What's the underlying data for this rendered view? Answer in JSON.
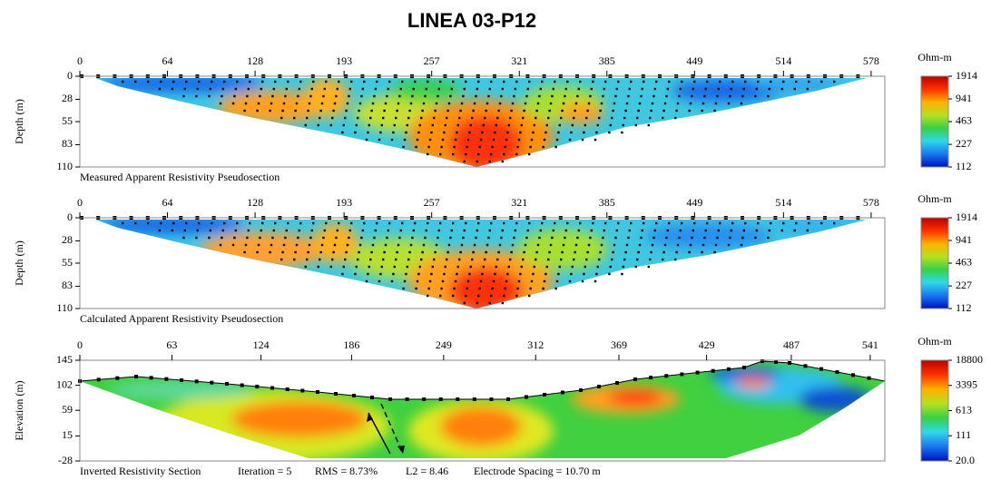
{
  "title": "LINEA 03-P12",
  "chart_data": [
    {
      "type": "contour",
      "caption": "Measured Apparent Resistivity Pseudosection",
      "ylabel": "Depth (m)",
      "xlim": [
        0,
        588
      ],
      "xticks": [
        0,
        64,
        128,
        193,
        257,
        321,
        385,
        449,
        514,
        578
      ],
      "ylim": [
        110,
        0
      ],
      "yticks": [
        0,
        28,
        55,
        83,
        110
      ],
      "colorbar": {
        "label": "Ohm-m",
        "log": true,
        "lim": [
          112,
          1914
        ],
        "ticks": [
          1914,
          941,
          463,
          227,
          112
        ],
        "colors": [
          "#0010c0",
          "#1878f0",
          "#30d8e8",
          "#38d048",
          "#b8e020",
          "#ffb000",
          "#ff3000",
          "#b80000"
        ]
      }
    },
    {
      "type": "contour",
      "caption": "Calculated Apparent Resistivity Pseudosection",
      "ylabel": "Depth (m)",
      "xlim": [
        0,
        588
      ],
      "xticks": [
        0,
        64,
        128,
        193,
        257,
        321,
        385,
        449,
        514,
        578
      ],
      "ylim": [
        110,
        0
      ],
      "yticks": [
        0,
        28,
        55,
        83,
        110
      ],
      "colorbar": {
        "label": "Ohm-m",
        "log": true,
        "lim": [
          112,
          1914
        ],
        "ticks": [
          1914,
          941,
          463,
          227,
          112
        ],
        "colors": [
          "#0010c0",
          "#1878f0",
          "#30d8e8",
          "#38d048",
          "#b8e020",
          "#ffb000",
          "#ff3000",
          "#b80000"
        ]
      }
    },
    {
      "type": "contour",
      "caption": "Inverted Resistivity Section",
      "ylabel": "Elevation (m)",
      "notes": [
        "Iteration = 5",
        "RMS = 8.73%",
        "L2 = 8.46",
        "Electrode Spacing = 10.70 m"
      ],
      "xlim": [
        0,
        551
      ],
      "xticks": [
        0,
        63,
        124,
        186,
        249,
        312,
        369,
        429,
        487,
        541
      ],
      "ylim": [
        -28,
        145
      ],
      "yticks": [
        -28,
        15,
        59,
        102,
        145
      ],
      "colorbar": {
        "label": "Ohm-m",
        "log": true,
        "lim": [
          20,
          18800
        ],
        "ticks": [
          18800,
          3395,
          613,
          111,
          {
            "value": 20,
            "label": "20.0"
          }
        ],
        "colors": [
          "#0010c0",
          "#1878f0",
          "#30d8e8",
          "#38d048",
          "#b8e020",
          "#ffb000",
          "#ff3000",
          "#b80000"
        ]
      }
    }
  ]
}
